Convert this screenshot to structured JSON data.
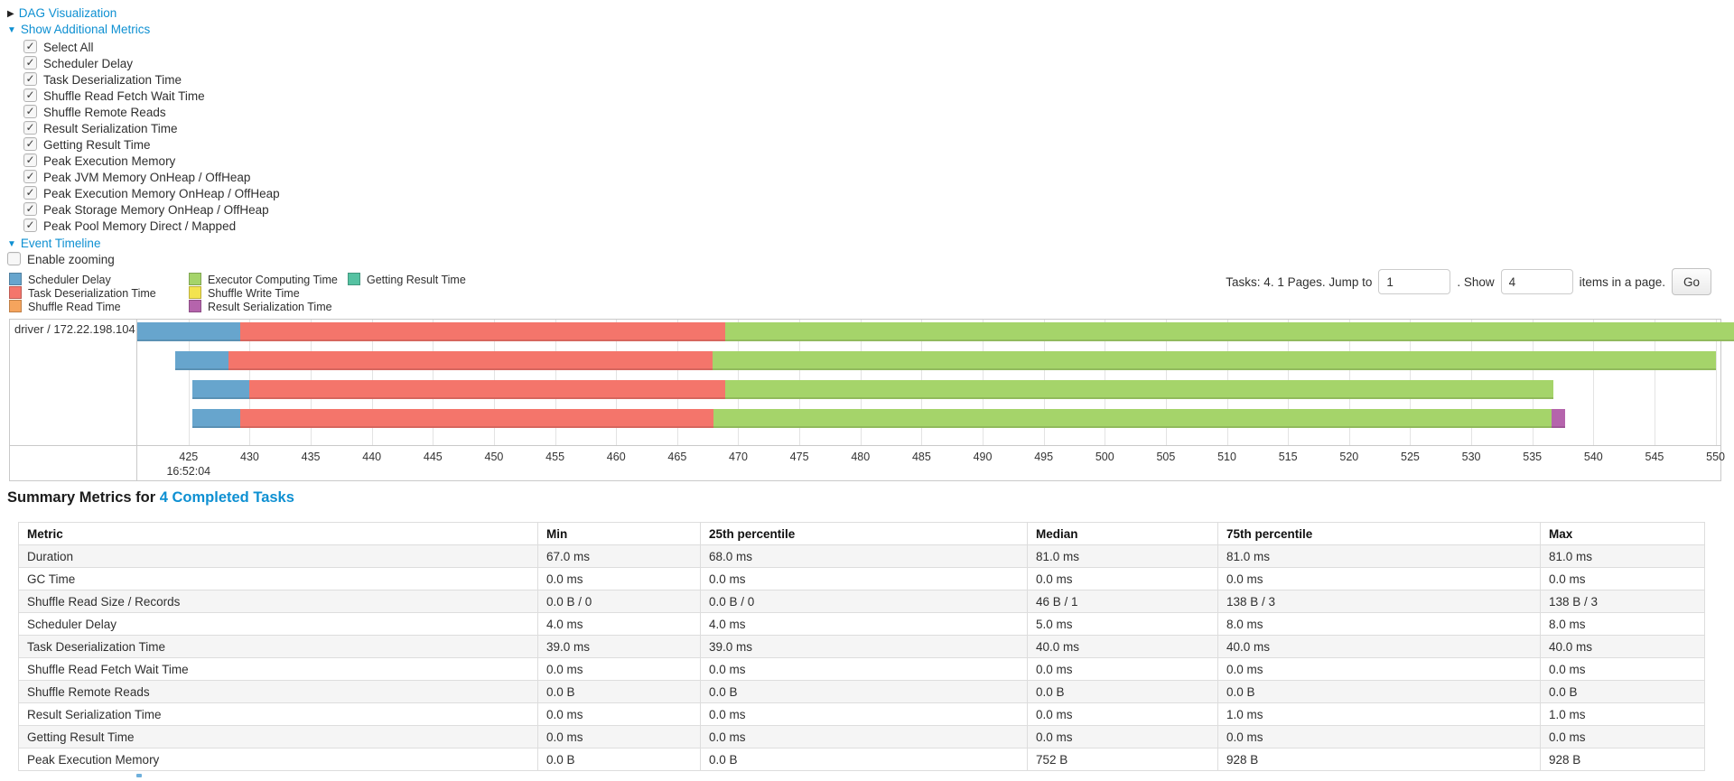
{
  "panel": {
    "dag_link": "DAG Visualization",
    "metrics_link": "Show Additional Metrics",
    "metrics_items": [
      "Select All",
      "Scheduler Delay",
      "Task Deserialization Time",
      "Shuffle Read Fetch Wait Time",
      "Shuffle Remote Reads",
      "Result Serialization Time",
      "Getting Result Time",
      "Peak Execution Memory",
      "Peak JVM Memory OnHeap / OffHeap",
      "Peak Execution Memory OnHeap / OffHeap",
      "Peak Storage Memory OnHeap / OffHeap",
      "Peak Pool Memory Direct / Mapped"
    ],
    "timeline_link": "Event Timeline",
    "enable_zooming_label": "Enable zooming",
    "enable_zooming_checked": false
  },
  "pagination": {
    "tasks_text": "Tasks: 4. 1 Pages. Jump to",
    "jump_value": "1",
    "show_text": ". Show",
    "show_value": "4",
    "items_text": "items in a page.",
    "go_label": "Go"
  },
  "chart_data": {
    "type": "timeline",
    "title": "Event Timeline",
    "row_label": "driver / 172.22.198.104",
    "x_domain": [
      420.8,
      550.4
    ],
    "x_ticks": [
      425,
      430,
      435,
      440,
      445,
      450,
      455,
      460,
      465,
      470,
      475,
      480,
      485,
      490,
      495,
      500,
      505,
      510,
      515,
      520,
      525,
      530,
      535,
      540,
      545,
      550
    ],
    "time_label": "16:52:04",
    "time_label_tick": 425,
    "colors": {
      "scheduler_delay": "#67a5cd",
      "task_deserialization": "#f4756b",
      "shuffle_read": "#f5a45d",
      "executor_computing": "#a5d46a",
      "shuffle_write": "#f3e34f",
      "result_serialization": "#b564ac",
      "getting_result": "#55c2a2"
    },
    "legend_columns": [
      [
        {
          "key": "scheduler_delay",
          "label": "Scheduler Delay"
        },
        {
          "key": "task_deserialization",
          "label": "Task Deserialization Time"
        },
        {
          "key": "shuffle_read",
          "label": "Shuffle Read Time"
        }
      ],
      [
        {
          "key": "executor_computing",
          "label": "Executor Computing Time"
        },
        {
          "key": "shuffle_write",
          "label": "Shuffle Write Time"
        },
        {
          "key": "result_serialization",
          "label": "Result Serialization Time"
        }
      ],
      [
        {
          "key": "getting_result",
          "label": "Getting Result Time"
        }
      ]
    ],
    "tasks": [
      {
        "segments": [
          {
            "key": "scheduler_delay",
            "start": 420.8,
            "end": 429.2
          },
          {
            "key": "task_deserialization",
            "start": 429.2,
            "end": 468.9
          },
          {
            "key": "executor_computing",
            "start": 468.9,
            "end": 551.5
          }
        ]
      },
      {
        "segments": [
          {
            "key": "scheduler_delay",
            "start": 423.9,
            "end": 428.3
          },
          {
            "key": "task_deserialization",
            "start": 428.3,
            "end": 467.9
          },
          {
            "key": "executor_computing",
            "start": 467.9,
            "end": 550.0
          }
        ]
      },
      {
        "segments": [
          {
            "key": "scheduler_delay",
            "start": 425.3,
            "end": 430.0
          },
          {
            "key": "task_deserialization",
            "start": 430.0,
            "end": 468.9
          },
          {
            "key": "executor_computing",
            "start": 468.9,
            "end": 536.7
          }
        ]
      },
      {
        "segments": [
          {
            "key": "scheduler_delay",
            "start": 425.3,
            "end": 429.2
          },
          {
            "key": "task_deserialization",
            "start": 429.2,
            "end": 468.0
          },
          {
            "key": "executor_computing",
            "start": 468.0,
            "end": 536.6
          },
          {
            "key": "result_serialization",
            "start": 536.6,
            "end": 537.7
          }
        ]
      }
    ]
  },
  "summary": {
    "heading_prefix": "Summary Metrics for ",
    "heading_link": "4 Completed Tasks",
    "columns": [
      "Metric",
      "Min",
      "25th percentile",
      "Median",
      "75th percentile",
      "Max"
    ],
    "rows": [
      {
        "metric": "Duration",
        "values": [
          "67.0 ms",
          "68.0 ms",
          "81.0 ms",
          "81.0 ms",
          "81.0 ms"
        ]
      },
      {
        "metric": "GC Time",
        "values": [
          "0.0 ms",
          "0.0 ms",
          "0.0 ms",
          "0.0 ms",
          "0.0 ms"
        ]
      },
      {
        "metric": "Shuffle Read Size / Records",
        "values": [
          "0.0 B / 0",
          "0.0 B / 0",
          "46 B / 1",
          "138 B / 3",
          "138 B / 3"
        ]
      },
      {
        "metric": "Scheduler Delay",
        "values": [
          "4.0 ms",
          "4.0 ms",
          "5.0 ms",
          "8.0 ms",
          "8.0 ms"
        ]
      },
      {
        "metric": "Task Deserialization Time",
        "values": [
          "39.0 ms",
          "39.0 ms",
          "40.0 ms",
          "40.0 ms",
          "40.0 ms"
        ]
      },
      {
        "metric": "Shuffle Read Fetch Wait Time",
        "values": [
          "0.0 ms",
          "0.0 ms",
          "0.0 ms",
          "0.0 ms",
          "0.0 ms"
        ]
      },
      {
        "metric": "Shuffle Remote Reads",
        "values": [
          "0.0 B",
          "0.0 B",
          "0.0 B",
          "0.0 B",
          "0.0 B"
        ]
      },
      {
        "metric": "Result Serialization Time",
        "values": [
          "0.0 ms",
          "0.0 ms",
          "0.0 ms",
          "1.0 ms",
          "1.0 ms"
        ]
      },
      {
        "metric": "Getting Result Time",
        "values": [
          "0.0 ms",
          "0.0 ms",
          "0.0 ms",
          "0.0 ms",
          "0.0 ms"
        ]
      },
      {
        "metric": "Peak Execution Memory",
        "values": [
          "0.0 B",
          "0.0 B",
          "752 B",
          "928 B",
          "928 B"
        ]
      }
    ]
  },
  "accent": {
    "link_color": "#0e90d2"
  }
}
